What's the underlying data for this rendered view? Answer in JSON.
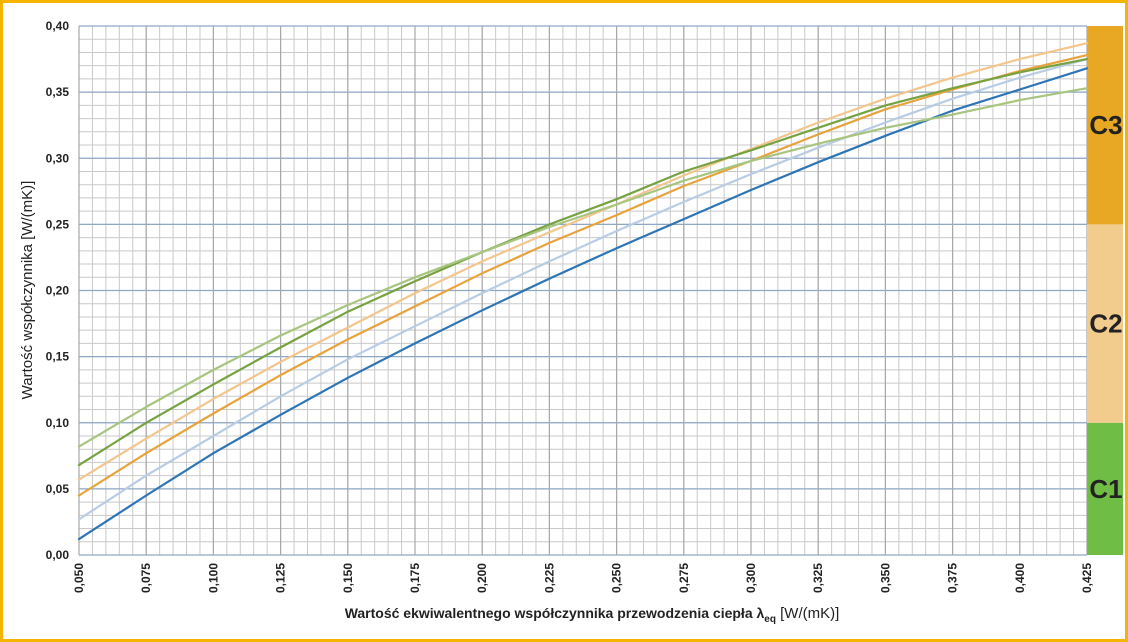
{
  "chart_data": {
    "type": "line",
    "title": "",
    "xlabel_main": "Wartość ekwiwalentnego  współczynnika przewodzenia ciepła λ",
    "xlabel_sub": "eq",
    "xlabel_unit": " [W/(mK)]",
    "ylabel": "Wartość współczynnika [W/(mK)]",
    "xlim": [
      0.05,
      0.425
    ],
    "ylim": [
      0.0,
      0.4
    ],
    "x_ticks": [
      0.05,
      0.075,
      0.1,
      0.125,
      0.15,
      0.175,
      0.2,
      0.225,
      0.25,
      0.275,
      0.3,
      0.325,
      0.35,
      0.375,
      0.4,
      0.425
    ],
    "x_tick_labels": [
      "0,050",
      "0,075",
      "0,100",
      "0,125",
      "0,150",
      "0,175",
      "0,200",
      "0,225",
      "0,250",
      "0,275",
      "0,300",
      "0,325",
      "0,350",
      "0,375",
      "0,400",
      "0,425"
    ],
    "y_ticks": [
      0.0,
      0.05,
      0.1,
      0.15,
      0.2,
      0.25,
      0.3,
      0.35,
      0.4
    ],
    "y_tick_labels": [
      "0,00",
      "0,05",
      "0,10",
      "0,15",
      "0,20",
      "0,25",
      "0,30",
      "0,35",
      "0,40"
    ],
    "grid": true,
    "x": [
      0.05,
      0.075,
      0.1,
      0.125,
      0.15,
      0.175,
      0.2,
      0.225,
      0.25,
      0.275,
      0.3,
      0.325,
      0.35,
      0.375,
      0.4,
      0.425
    ],
    "series": [
      {
        "name": "series-blue",
        "color": "#2e75b6",
        "values": [
          0.012,
          0.045,
          0.077,
          0.106,
          0.134,
          0.16,
          0.185,
          0.209,
          0.232,
          0.254,
          0.276,
          0.297,
          0.317,
          0.336,
          0.352,
          0.368
        ]
      },
      {
        "name": "series-light-blue",
        "color": "#b8cce4",
        "values": [
          0.027,
          0.06,
          0.09,
          0.12,
          0.148,
          0.173,
          0.198,
          0.222,
          0.245,
          0.267,
          0.288,
          0.308,
          0.327,
          0.345,
          0.361,
          0.375
        ]
      },
      {
        "name": "series-orange",
        "color": "#e8a33d",
        "values": [
          0.045,
          0.077,
          0.107,
          0.136,
          0.163,
          0.188,
          0.213,
          0.236,
          0.257,
          0.279,
          0.298,
          0.318,
          0.337,
          0.352,
          0.366,
          0.378
        ]
      },
      {
        "name": "series-light-orange",
        "color": "#f2c68d",
        "values": [
          0.057,
          0.088,
          0.118,
          0.146,
          0.172,
          0.198,
          0.222,
          0.244,
          0.265,
          0.287,
          0.307,
          0.327,
          0.345,
          0.361,
          0.375,
          0.387
        ]
      },
      {
        "name": "series-green",
        "color": "#76a240",
        "values": [
          0.068,
          0.1,
          0.129,
          0.157,
          0.184,
          0.207,
          0.229,
          0.25,
          0.269,
          0.29,
          0.306,
          0.323,
          0.34,
          0.353,
          0.365,
          0.375
        ]
      },
      {
        "name": "series-light-green",
        "color": "#a7c57f",
        "values": [
          0.082,
          0.112,
          0.14,
          0.166,
          0.189,
          0.21,
          0.229,
          0.248,
          0.265,
          0.283,
          0.298,
          0.311,
          0.323,
          0.333,
          0.344,
          0.353
        ]
      }
    ],
    "zones": [
      {
        "label": "C1",
        "from": 0.0,
        "to": 0.1,
        "color": "#6fbd44"
      },
      {
        "label": "C2",
        "from": 0.1,
        "to": 0.25,
        "color": "#f2cc8d"
      },
      {
        "label": "C3",
        "from": 0.25,
        "to": 0.4,
        "color": "#e8a823"
      }
    ]
  }
}
